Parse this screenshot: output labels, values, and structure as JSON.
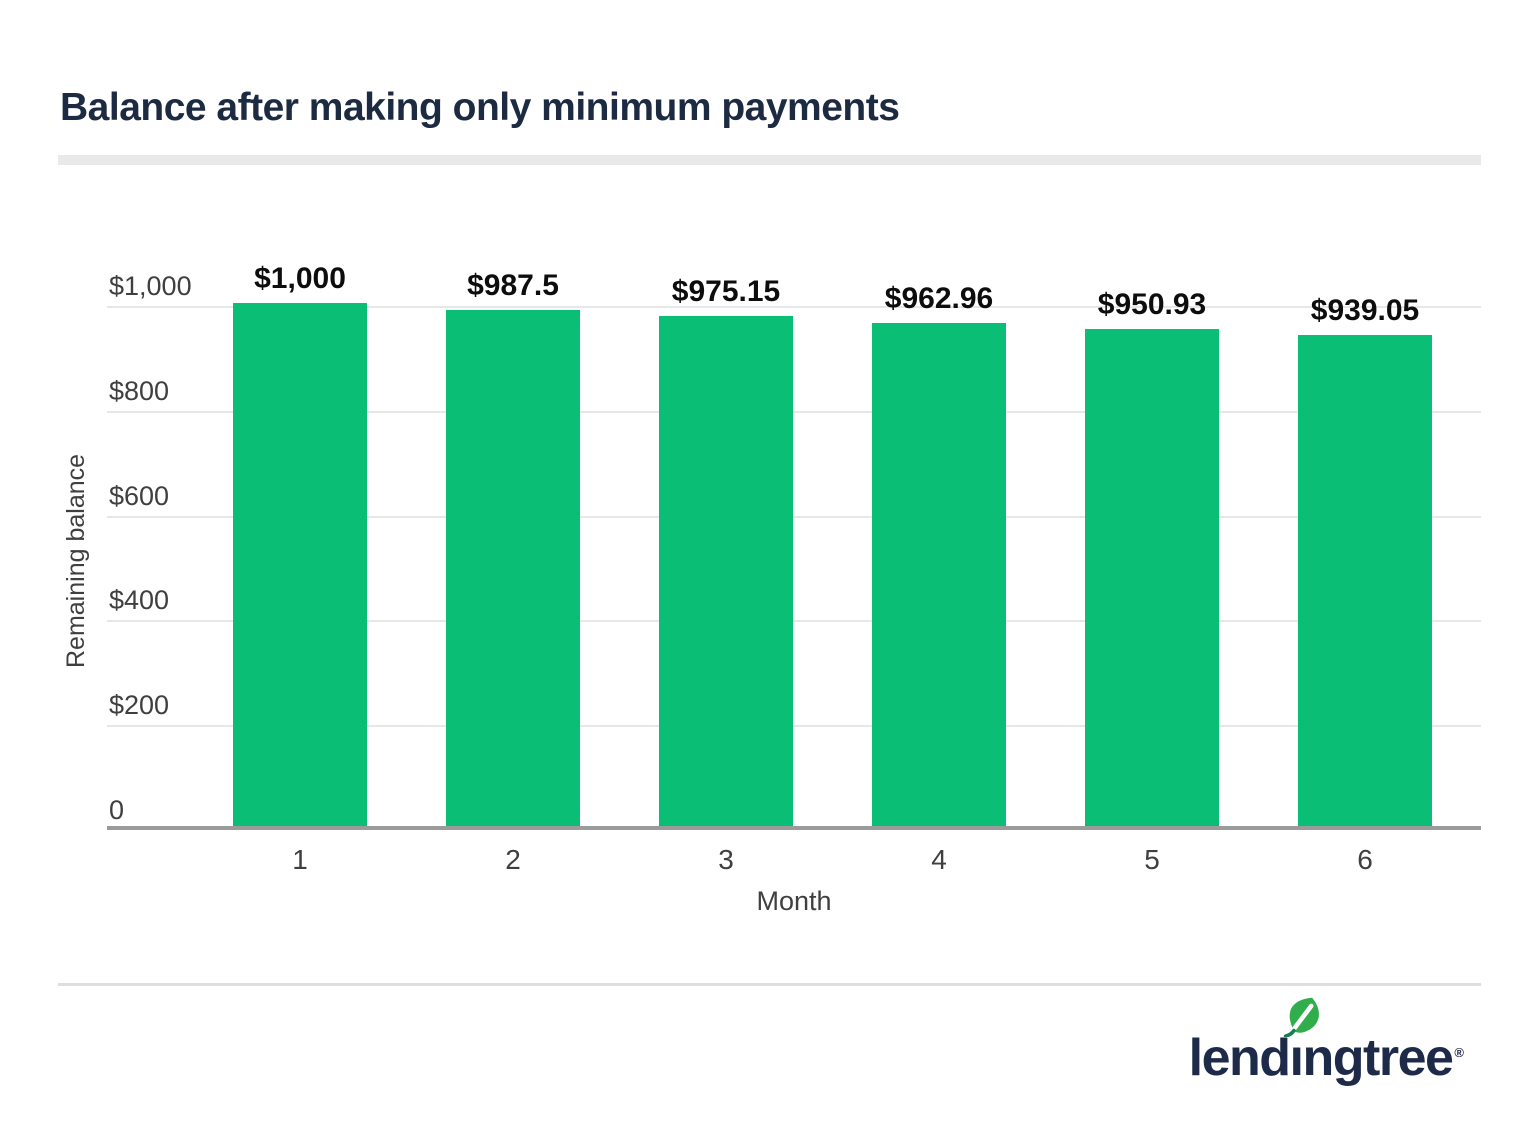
{
  "title": "Balance after making only minimum payments",
  "chart_data": {
    "type": "bar",
    "title": "Balance after making only minimum payments",
    "xlabel": "Month",
    "ylabel": "Remaining balance",
    "categories": [
      "1",
      "2",
      "3",
      "4",
      "5",
      "6"
    ],
    "values": [
      1000,
      987.5,
      975.15,
      962.96,
      950.93,
      939.05
    ],
    "value_labels": [
      "$1,000",
      "$987.5",
      "$975.15",
      "$962.96",
      "$950.93",
      "$939.05"
    ],
    "ylim": [
      0,
      1050
    ],
    "yticks": [
      {
        "value": 0,
        "label": "0"
      },
      {
        "value": 200,
        "label": "$200"
      },
      {
        "value": 400,
        "label": "$400"
      },
      {
        "value": 600,
        "label": "$600"
      },
      {
        "value": 800,
        "label": "$800"
      },
      {
        "value": 1000,
        "label": "$1,000"
      }
    ],
    "grid": true,
    "legend": false,
    "bar_color": "#0bbe76"
  },
  "colors": {
    "title": "#1d2b42",
    "bar": "#0bbe76",
    "axis_line": "#9b9b9b",
    "gridline": "#e7e7e7",
    "tick_text": "#3f3f3f",
    "bar_label": "#0d0d0d",
    "divider": "#e9e9e9",
    "logo_navy": "#1d2b49",
    "leaf_green": "#2fae4b",
    "leaf_stem": "#177e52"
  },
  "footer": {
    "logo_text": "lendingtree",
    "logo_part_before": "lend",
    "logo_dotless_i": "ı",
    "logo_part_after": "ngtree",
    "registered_mark": "®"
  }
}
